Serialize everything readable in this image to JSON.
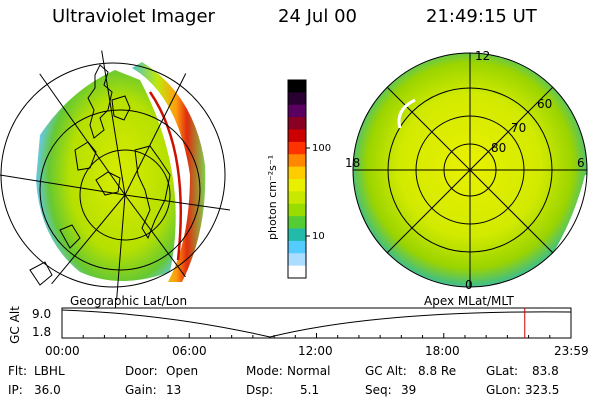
{
  "header": {
    "title": "Ultraviolet Imager",
    "date": "24 Jul 00",
    "time": "21:49:15 UT"
  },
  "left_map": {
    "caption": "Geographic Lat/Lon"
  },
  "right_map": {
    "caption": "Apex MLat/MLT",
    "mlt_labels": [
      "12",
      "18",
      "6",
      "0"
    ],
    "lat_labels": [
      "60",
      "70",
      "80"
    ]
  },
  "colorbar": {
    "label": "photon cm⁻²s⁻¹",
    "ticks": [
      "100",
      "10"
    ],
    "colors": [
      "#000000",
      "#2a0033",
      "#5a0060",
      "#880022",
      "#cc0000",
      "#ff3300",
      "#ff8800",
      "#ffcc00",
      "#e8f000",
      "#c8e800",
      "#99dd00",
      "#55cc33",
      "#22bbaa",
      "#55ccff",
      "#aaddff",
      "#ffffff"
    ]
  },
  "timeline": {
    "ylabel": "GC Alt",
    "yticks": [
      "9.0",
      "1.8"
    ],
    "xticks": [
      "00:00",
      "06:00",
      "12:00",
      "18:00",
      "23:59"
    ],
    "marker_hour": 21.82
  },
  "footer": {
    "row1": [
      {
        "key": "Flt:",
        "val": "LBHL"
      },
      {
        "key": "Door:",
        "val": "Open"
      },
      {
        "key": "Mode:",
        "val": "Normal"
      },
      {
        "key": "GC Alt:",
        "val": "8.8 Re"
      },
      {
        "key": "GLat:",
        "val": "83.8"
      }
    ],
    "row2": [
      {
        "key": "IP:",
        "val": "36.0"
      },
      {
        "key": "Gain:",
        "val": "13"
      },
      {
        "key": "Dsp:",
        "val": "5.1"
      },
      {
        "key": "Seq:",
        "val": "39"
      },
      {
        "key": "GLon:",
        "val": "323.5"
      }
    ]
  }
}
